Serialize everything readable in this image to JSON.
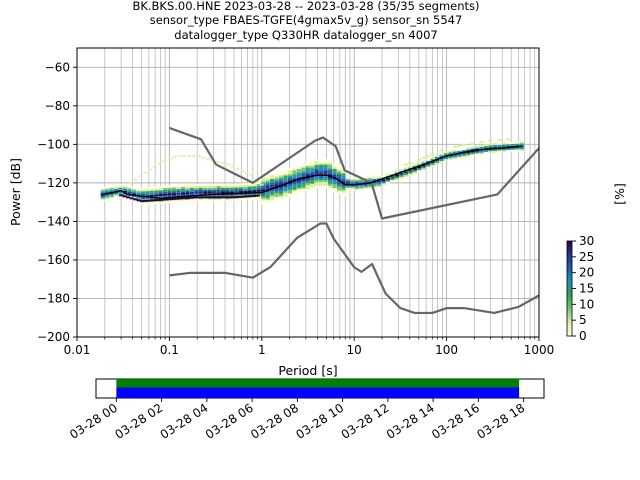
{
  "title_lines": [
    "BK.BKS.00.HNE   2023-03-28 -- 2023-03-28  (35/35 segments)",
    "sensor_type FBAES-TGFE(4gmax5v_g) sensor_sn 5547",
    "datalogger_type Q330HR datalogger_sn 4007"
  ],
  "colors": {
    "grid": "#b0b0b0",
    "noise_model": "#666666",
    "mean": "#000000",
    "segments_primary": "#0000ff",
    "segments_secondary": "#008000",
    "colormap": [
      "#ffffe0",
      "#d9f0a3",
      "#78c679",
      "#31a354",
      "#1d91c0",
      "#225ea8",
      "#253494",
      "#2d004b"
    ]
  },
  "chart_data": [
    {
      "type": "heatmap",
      "xlabel": "Period [s]",
      "ylabel": "Power [dB]",
      "xscale": "log",
      "xlim": [
        0.01,
        1000
      ],
      "ylim": [
        -200,
        -50
      ],
      "xticks": [
        0.01,
        0.1,
        1,
        10,
        100,
        1000
      ],
      "xtick_labels": [
        "0.01",
        "0.1",
        "1",
        "10",
        "100",
        "1000"
      ],
      "yticks": [
        -200,
        -180,
        -160,
        -140,
        -120,
        -100,
        -80,
        -60
      ],
      "ytick_labels": [
        "−200",
        "−180",
        "−160",
        "−140",
        "−120",
        "−100",
        "−80",
        "−60"
      ],
      "grid": true,
      "colorbar": {
        "label": "[%]",
        "range": [
          0,
          30
        ],
        "ticks": [
          0,
          5,
          10,
          15,
          20,
          25,
          30
        ],
        "tick_labels": [
          "0",
          "5",
          "10",
          "15",
          "20",
          "25",
          "30"
        ]
      },
      "series": [
        {
          "role": "mean",
          "x": [
            0.019,
            0.025,
            0.03,
            0.035,
            0.05,
            0.08,
            0.15,
            0.3,
            0.6,
            1.0,
            1.5,
            2.5,
            4.0,
            5.0,
            6.5,
            8.0,
            10,
            15,
            30,
            60,
            100,
            200,
            400,
            650
          ],
          "y": [
            -126,
            -125,
            -124,
            -126,
            -127,
            -128,
            -127,
            -126,
            -125.5,
            -125,
            -122,
            -118,
            -116,
            -116,
            -118,
            -121,
            -121,
            -120,
            -115,
            -110,
            -106,
            -103,
            -102,
            -101
          ]
        },
        {
          "role": "noise-model-high",
          "x": [
            0.1,
            0.22,
            0.32,
            0.8,
            3.8,
            4.6,
            6.3,
            7.9,
            15.4,
            20,
            354.8,
            10000
          ],
          "y": [
            -91.5,
            -97.4,
            -110.5,
            -120,
            -98,
            -96.5,
            -101,
            -113.5,
            -120,
            -138.5,
            -126,
            -48.5
          ]
        },
        {
          "role": "noise-model-low",
          "x": [
            0.1,
            0.17,
            0.4,
            0.8,
            1.24,
            2.4,
            4.3,
            5.0,
            6.0,
            10,
            12,
            15.6,
            21.9,
            31.6,
            45,
            70,
            101,
            154,
            328,
            600,
            10000
          ],
          "y": [
            -168,
            -166.7,
            -166.7,
            -169.2,
            -163.7,
            -148.6,
            -141.1,
            -141.1,
            -149,
            -163.8,
            -166.2,
            -162.1,
            -177.5,
            -185,
            -187.5,
            -187.5,
            -185,
            -185,
            -187.5,
            -184.4,
            -151.5
          ]
        },
        {
          "role": "density-median",
          "x": [
            0.019,
            0.03,
            0.05,
            0.1,
            0.2,
            0.5,
            1.0,
            2.0,
            3.0,
            4.0,
            5.0,
            6.0,
            8.0,
            10,
            20,
            50,
            100,
            300,
            650
          ],
          "y": [
            -126,
            -124,
            -127,
            -126,
            -125,
            -125,
            -124,
            -120,
            -117,
            -115,
            -115,
            -117,
            -120,
            -121,
            -119,
            -112,
            -106,
            -102,
            -101
          ]
        },
        {
          "role": "density-upper-faint",
          "x": [
            0.03,
            0.05,
            0.08,
            0.12,
            0.2,
            0.4,
            0.8,
            1.0
          ],
          "y": [
            -124,
            -116,
            -110,
            -106,
            -106,
            -110,
            -116,
            -121
          ]
        }
      ]
    },
    {
      "type": "timeline",
      "x_tick_labels": [
        "03-28 00",
        "03-28 02",
        "03-28 04",
        "03-28 06",
        "03-28 08",
        "03-28 10",
        "03-28 12",
        "03-28 14",
        "03-28 16",
        "03-28 18"
      ],
      "x_ticks_hours": [
        0,
        2,
        4,
        6,
        8,
        10,
        12,
        14,
        16,
        18
      ],
      "xlim_hours": [
        -0.9,
        18.9
      ],
      "segments_hours": [
        0,
        17.8
      ]
    }
  ]
}
